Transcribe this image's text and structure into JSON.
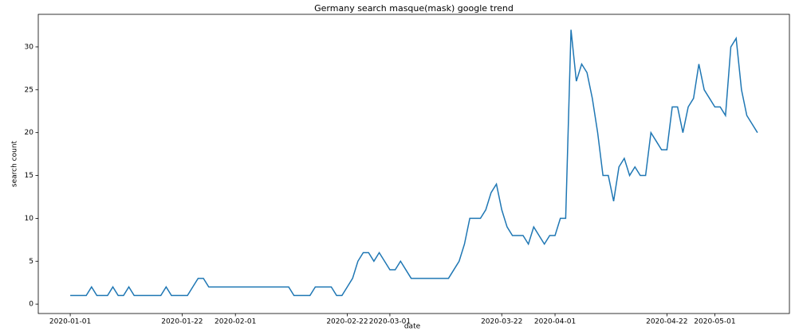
{
  "chart_data": {
    "type": "line",
    "title": "Germany search masque(mask) google trend",
    "x_label": "date",
    "y_label": "search count",
    "x": [
      "2020-01-01",
      "2020-01-02",
      "2020-01-03",
      "2020-01-04",
      "2020-01-05",
      "2020-01-06",
      "2020-01-07",
      "2020-01-08",
      "2020-01-09",
      "2020-01-10",
      "2020-01-11",
      "2020-01-12",
      "2020-01-13",
      "2020-01-14",
      "2020-01-15",
      "2020-01-16",
      "2020-01-17",
      "2020-01-18",
      "2020-01-19",
      "2020-01-20",
      "2020-01-21",
      "2020-01-22",
      "2020-01-23",
      "2020-01-24",
      "2020-01-25",
      "2020-01-26",
      "2020-01-27",
      "2020-01-28",
      "2020-01-29",
      "2020-01-30",
      "2020-01-31",
      "2020-02-01",
      "2020-02-02",
      "2020-02-03",
      "2020-02-04",
      "2020-02-05",
      "2020-02-06",
      "2020-02-07",
      "2020-02-08",
      "2020-02-09",
      "2020-02-10",
      "2020-02-11",
      "2020-02-12",
      "2020-02-13",
      "2020-02-14",
      "2020-02-15",
      "2020-02-16",
      "2020-02-17",
      "2020-02-18",
      "2020-02-19",
      "2020-02-20",
      "2020-02-21",
      "2020-02-22",
      "2020-02-23",
      "2020-02-24",
      "2020-02-25",
      "2020-02-26",
      "2020-02-27",
      "2020-02-28",
      "2020-02-29",
      "2020-03-01",
      "2020-03-02",
      "2020-03-03",
      "2020-03-04",
      "2020-03-05",
      "2020-03-06",
      "2020-03-07",
      "2020-03-08",
      "2020-03-09",
      "2020-03-10",
      "2020-03-11",
      "2020-03-12",
      "2020-03-13",
      "2020-03-14",
      "2020-03-15",
      "2020-03-16",
      "2020-03-17",
      "2020-03-18",
      "2020-03-19",
      "2020-03-20",
      "2020-03-21",
      "2020-03-22",
      "2020-03-23",
      "2020-03-24",
      "2020-03-25",
      "2020-03-26",
      "2020-03-27",
      "2020-03-28",
      "2020-03-29",
      "2020-03-30",
      "2020-03-31",
      "2020-04-01",
      "2020-04-02",
      "2020-04-03",
      "2020-04-04",
      "2020-04-05",
      "2020-04-06",
      "2020-04-07",
      "2020-04-08",
      "2020-04-09",
      "2020-04-10",
      "2020-04-11",
      "2020-04-12",
      "2020-04-13",
      "2020-04-14",
      "2020-04-15",
      "2020-04-16",
      "2020-04-17",
      "2020-04-18",
      "2020-04-19",
      "2020-04-20",
      "2020-04-21",
      "2020-04-22",
      "2020-04-23",
      "2020-04-24",
      "2020-04-25",
      "2020-04-26",
      "2020-04-27",
      "2020-04-28",
      "2020-04-29",
      "2020-04-30",
      "2020-05-01",
      "2020-05-02",
      "2020-05-03",
      "2020-05-04",
      "2020-05-05",
      "2020-05-06",
      "2020-05-07",
      "2020-05-08",
      "2020-05-09"
    ],
    "series": [
      {
        "name": "search count",
        "color": "#1f77b4",
        "values": [
          1,
          1,
          1,
          1,
          2,
          1,
          1,
          1,
          2,
          1,
          1,
          2,
          1,
          1,
          1,
          1,
          1,
          1,
          2,
          1,
          1,
          1,
          1,
          2,
          3,
          3,
          2,
          2,
          2,
          2,
          2,
          2,
          2,
          2,
          2,
          2,
          2,
          2,
          2,
          2,
          2,
          2,
          1,
          1,
          1,
          1,
          2,
          2,
          2,
          2,
          1,
          1,
          2,
          3,
          5,
          6,
          6,
          5,
          6,
          5,
          4,
          4,
          5,
          4,
          3,
          3,
          3,
          3,
          3,
          3,
          3,
          3,
          4,
          5,
          7,
          10,
          10,
          10,
          11,
          13,
          14,
          11,
          9,
          8,
          8,
          8,
          7,
          9,
          8,
          7,
          8,
          8,
          10,
          10,
          32,
          26,
          28,
          27,
          24,
          20,
          15,
          15,
          12,
          16,
          17,
          15,
          16,
          15,
          15,
          20,
          19,
          18,
          18,
          23,
          23,
          20,
          23,
          24,
          28,
          25,
          24,
          23,
          23,
          22,
          30,
          31,
          25,
          22,
          21,
          20
        ]
      }
    ],
    "xlim": [
      "2019-12-26",
      "2020-05-15"
    ],
    "xticks": [
      "2020-01-01",
      "2020-01-22",
      "2020-02-01",
      "2020-02-22",
      "2020-03-01",
      "2020-03-22",
      "2020-04-01",
      "2020-04-22",
      "2020-05-01"
    ],
    "ylim": [
      -1.1,
      33.8
    ],
    "yticks": [
      0,
      5,
      10,
      15,
      20,
      25,
      30
    ],
    "grid": false
  }
}
